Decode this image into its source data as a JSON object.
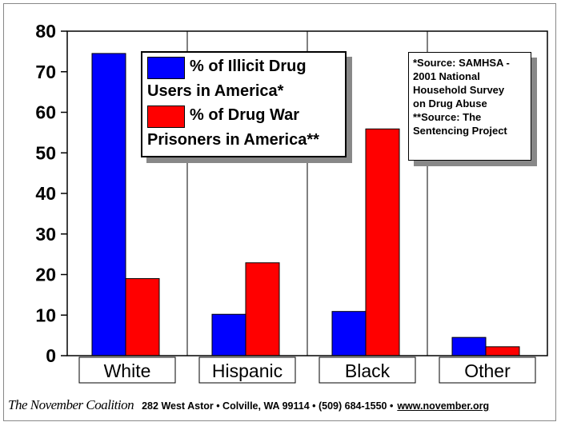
{
  "chart_data": {
    "type": "bar",
    "title": "",
    "xlabel": "",
    "ylabel": "",
    "categories": [
      "White",
      "Hispanic",
      "Black",
      "Other"
    ],
    "series": [
      {
        "name": "% of Illicit Drug Users in America*",
        "values": [
          74.5,
          10.2,
          10.9,
          4.5
        ]
      },
      {
        "name": "% of Drug War Prisoners in America**",
        "values": [
          19.0,
          22.9,
          55.9,
          2.2
        ]
      }
    ],
    "ylim": [
      0,
      80
    ],
    "yticks": [
      "0",
      "10",
      "20",
      "30",
      "40",
      "50",
      "60",
      "70",
      "80"
    ],
    "grid": "vertical",
    "legend_position": "top-center",
    "colors": {
      "series": [
        "#0000ff",
        "#ff0000"
      ],
      "plot_border": "#000000",
      "grid": "#000000"
    }
  },
  "legend": {
    "line1": "% of Illicit Drug",
    "line2": "Users in America*",
    "line3": "% of Drug War",
    "line4": "Prisoners in America**"
  },
  "source_note": {
    "line1": "*Source: SAMHSA -",
    "line2": "2001 National",
    "line3": "Household Survey",
    "line4": "on Drug Abuse",
    "line5": "**Source: The",
    "line6": "Sentencing Project"
  },
  "footer": {
    "org_name": "The November Coalition",
    "contact": "282 West Astor • Colville, WA 99114 • (509) 684-1550 •",
    "website": "www.november.org"
  }
}
